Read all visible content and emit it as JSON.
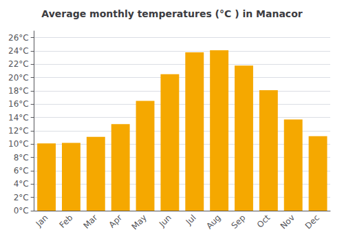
{
  "chart_data": {
    "type": "bar",
    "title": "Average monthly temperatures (°C ) in Manacor",
    "categories": [
      "Jan",
      "Feb",
      "Mar",
      "Apr",
      "May",
      "Jun",
      "Jul",
      "Aug",
      "Sep",
      "Oct",
      "Nov",
      "Dec"
    ],
    "values": [
      10.1,
      10.2,
      11.1,
      13.0,
      16.5,
      20.5,
      23.8,
      24.1,
      21.8,
      18.1,
      13.7,
      11.2
    ],
    "color": "#F5A800",
    "ylim": [
      0,
      27
    ],
    "yticks": [
      {
        "value": 0,
        "label": "0°C"
      },
      {
        "value": 2,
        "label": "2°C"
      },
      {
        "value": 4,
        "label": "4°C"
      },
      {
        "value": 6,
        "label": "6°C"
      },
      {
        "value": 8,
        "label": "8°C"
      },
      {
        "value": 10,
        "label": "10°C"
      },
      {
        "value": 12,
        "label": "12°C"
      },
      {
        "value": 14,
        "label": "14°C"
      },
      {
        "value": 16,
        "label": "16°C"
      },
      {
        "value": 18,
        "label": "18°C"
      },
      {
        "value": 20,
        "label": "20°C"
      },
      {
        "value": 22,
        "label": "22°C"
      },
      {
        "value": 24,
        "label": "24°C"
      },
      {
        "value": 26,
        "label": "26°C"
      }
    ],
    "grid": true
  }
}
